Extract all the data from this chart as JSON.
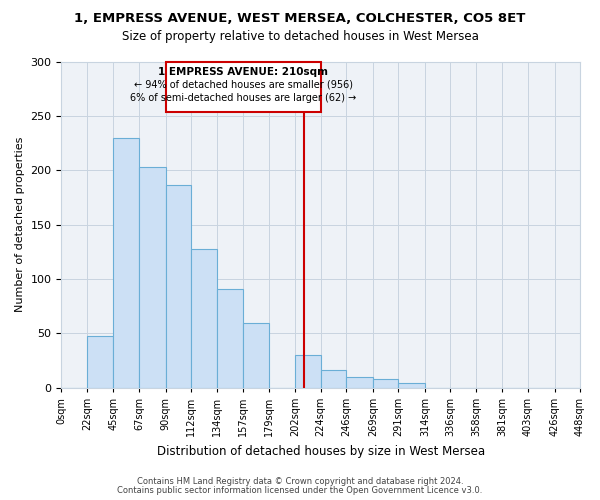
{
  "title": "1, EMPRESS AVENUE, WEST MERSEA, COLCHESTER, CO5 8ET",
  "subtitle": "Size of property relative to detached houses in West Mersea",
  "xlabel": "Distribution of detached houses by size in West Mersea",
  "ylabel": "Number of detached properties",
  "footer_line1": "Contains HM Land Registry data © Crown copyright and database right 2024.",
  "footer_line2": "Contains public sector information licensed under the Open Government Licence v3.0.",
  "bin_labels": [
    "0sqm",
    "22sqm",
    "45sqm",
    "67sqm",
    "90sqm",
    "112sqm",
    "134sqm",
    "157sqm",
    "179sqm",
    "202sqm",
    "224sqm",
    "246sqm",
    "269sqm",
    "291sqm",
    "314sqm",
    "336sqm",
    "358sqm",
    "381sqm",
    "403sqm",
    "426sqm",
    "448sqm"
  ],
  "bin_edges": [
    0,
    22,
    45,
    67,
    90,
    112,
    134,
    157,
    179,
    202,
    224,
    246,
    269,
    291,
    314,
    336,
    358,
    381,
    403,
    426,
    448
  ],
  "bar_heights": [
    0,
    48,
    230,
    203,
    186,
    128,
    91,
    60,
    0,
    30,
    16,
    10,
    8,
    4,
    0,
    0,
    0,
    0,
    0,
    0
  ],
  "bar_color": "#cce0f5",
  "bar_edge_color": "#6aaed6",
  "property_size": 210,
  "vline_color": "#cc0000",
  "annotation_text_line1": "1 EMPRESS AVENUE: 210sqm",
  "annotation_text_line2": "← 94% of detached houses are smaller (956)",
  "annotation_text_line3": "6% of semi-detached houses are larger (62) →",
  "annotation_box_edgecolor": "#cc0000",
  "annotation_box_facecolor": "#ffffff",
  "ylim": [
    0,
    300
  ],
  "yticks": [
    0,
    50,
    100,
    150,
    200,
    250,
    300
  ],
  "grid_color": "#c8d4e0",
  "background_color": "#ffffff",
  "plot_bg_color": "#eef2f7"
}
